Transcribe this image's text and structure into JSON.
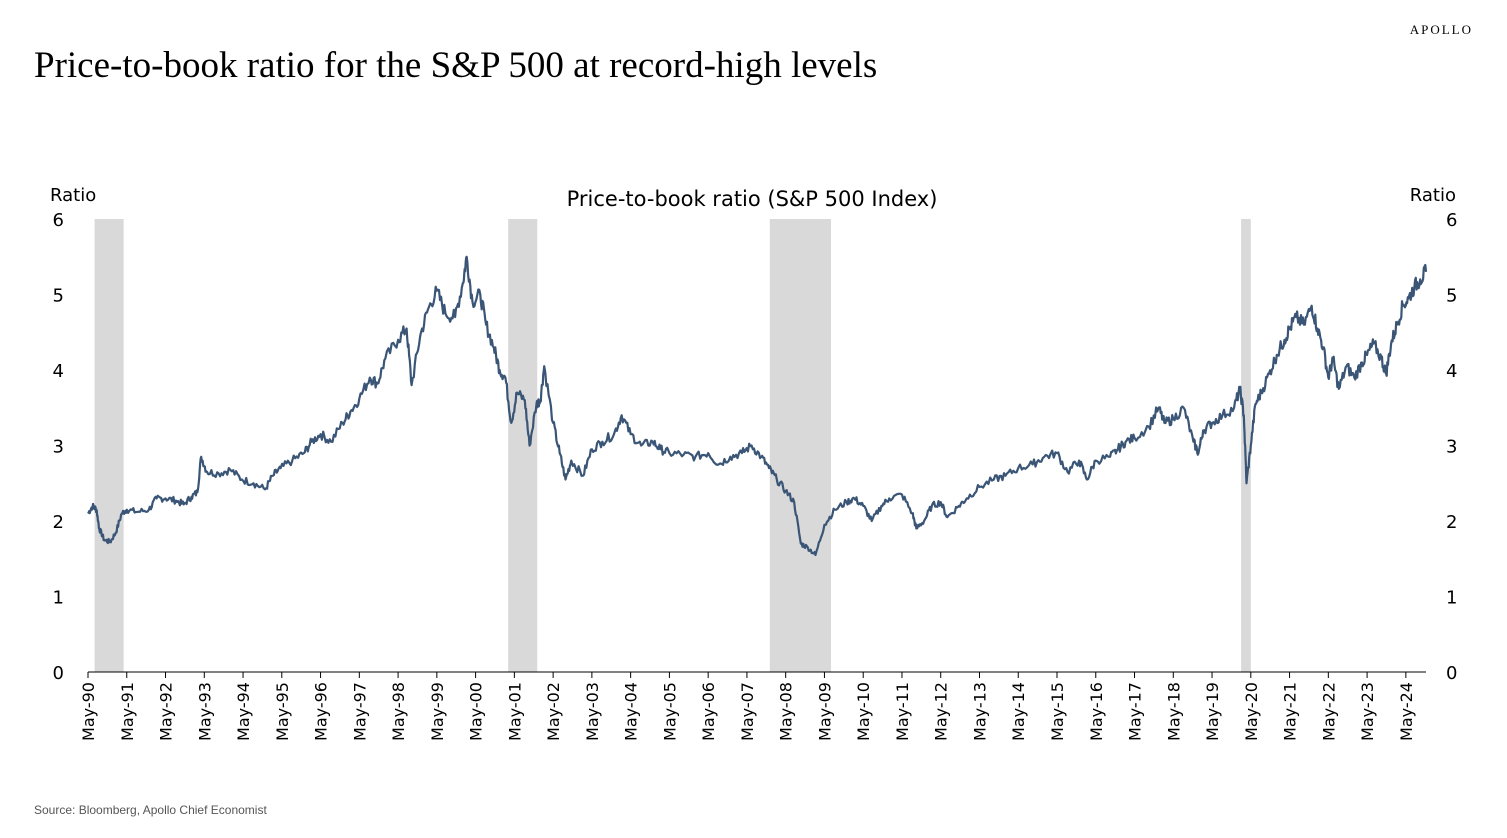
{
  "brand": "APOLLO",
  "headline": "Price-to-book ratio for the S&P 500 at record-high levels",
  "source": "Source: Bloomberg, Apollo Chief Economist",
  "colors": {
    "line": "#3a5576",
    "recession": "#d9d9d9",
    "axis": "#000000"
  },
  "chart_data": {
    "type": "line",
    "title": "Price-to-book ratio (S&P 500 Index)",
    "ylabel_left": "Ratio",
    "ylabel_right": "Ratio",
    "ylim": [
      0,
      6
    ],
    "yticks": [
      0,
      1,
      2,
      3,
      4,
      5,
      6
    ],
    "xlim": [
      1990.33,
      2024.85
    ],
    "xticks": [
      {
        "label": "May-90",
        "x": 1990.33
      },
      {
        "label": "May-91",
        "x": 1991.33
      },
      {
        "label": "May-92",
        "x": 1992.33
      },
      {
        "label": "May-93",
        "x": 1993.33
      },
      {
        "label": "May-94",
        "x": 1994.33
      },
      {
        "label": "May-95",
        "x": 1995.33
      },
      {
        "label": "May-96",
        "x": 1996.33
      },
      {
        "label": "May-97",
        "x": 1997.33
      },
      {
        "label": "May-98",
        "x": 1998.33
      },
      {
        "label": "May-99",
        "x": 1999.33
      },
      {
        "label": "May-00",
        "x": 2000.33
      },
      {
        "label": "May-01",
        "x": 2001.33
      },
      {
        "label": "May-02",
        "x": 2002.33
      },
      {
        "label": "May-03",
        "x": 2003.33
      },
      {
        "label": "May-04",
        "x": 2004.33
      },
      {
        "label": "May-05",
        "x": 2005.33
      },
      {
        "label": "May-06",
        "x": 2006.33
      },
      {
        "label": "May-07",
        "x": 2007.33
      },
      {
        "label": "May-08",
        "x": 2008.33
      },
      {
        "label": "May-09",
        "x": 2009.33
      },
      {
        "label": "May-10",
        "x": 2010.33
      },
      {
        "label": "May-11",
        "x": 2011.33
      },
      {
        "label": "May-12",
        "x": 2012.33
      },
      {
        "label": "May-13",
        "x": 2013.33
      },
      {
        "label": "May-14",
        "x": 2014.33
      },
      {
        "label": "May-15",
        "x": 2015.33
      },
      {
        "label": "May-16",
        "x": 2016.33
      },
      {
        "label": "May-17",
        "x": 2017.33
      },
      {
        "label": "May-18",
        "x": 2018.33
      },
      {
        "label": "May-19",
        "x": 2019.33
      },
      {
        "label": "May-20",
        "x": 2020.33
      },
      {
        "label": "May-21",
        "x": 2021.33
      },
      {
        "label": "May-22",
        "x": 2022.33
      },
      {
        "label": "May-23",
        "x": 2023.33
      },
      {
        "label": "May-24",
        "x": 2024.33
      }
    ],
    "recessions": [
      {
        "start": 1990.5,
        "end": 1991.25
      },
      {
        "start": 2001.17,
        "end": 2001.92
      },
      {
        "start": 2007.92,
        "end": 2009.5
      },
      {
        "start": 2020.08,
        "end": 2020.33
      }
    ],
    "grid": false,
    "series": [
      {
        "values": [
          [
            1990.33,
            2.1
          ],
          [
            1990.45,
            2.2
          ],
          [
            1990.55,
            2.15
          ],
          [
            1990.62,
            1.9
          ],
          [
            1990.75,
            1.75
          ],
          [
            1990.9,
            1.72
          ],
          [
            1991.05,
            1.85
          ],
          [
            1991.2,
            2.1
          ],
          [
            1991.33,
            2.15
          ],
          [
            1991.6,
            2.12
          ],
          [
            1991.9,
            2.15
          ],
          [
            1992.1,
            2.3
          ],
          [
            1992.33,
            2.3
          ],
          [
            1992.6,
            2.27
          ],
          [
            1992.8,
            2.22
          ],
          [
            1993.0,
            2.32
          ],
          [
            1993.15,
            2.38
          ],
          [
            1993.25,
            2.85
          ],
          [
            1993.4,
            2.65
          ],
          [
            1993.7,
            2.63
          ],
          [
            1994.0,
            2.68
          ],
          [
            1994.3,
            2.55
          ],
          [
            1994.6,
            2.5
          ],
          [
            1994.9,
            2.42
          ],
          [
            1995.1,
            2.6
          ],
          [
            1995.3,
            2.7
          ],
          [
            1995.6,
            2.8
          ],
          [
            1995.9,
            2.9
          ],
          [
            1996.1,
            3.05
          ],
          [
            1996.33,
            3.15
          ],
          [
            1996.6,
            3.05
          ],
          [
            1996.9,
            3.3
          ],
          [
            1997.1,
            3.45
          ],
          [
            1997.33,
            3.62
          ],
          [
            1997.6,
            3.9
          ],
          [
            1997.8,
            3.82
          ],
          [
            1998.0,
            4.15
          ],
          [
            1998.33,
            4.4
          ],
          [
            1998.55,
            4.55
          ],
          [
            1998.68,
            3.8
          ],
          [
            1998.9,
            4.45
          ],
          [
            1999.1,
            4.8
          ],
          [
            1999.33,
            5.05
          ],
          [
            1999.55,
            4.75
          ],
          [
            1999.8,
            4.7
          ],
          [
            2000.0,
            5.15
          ],
          [
            2000.1,
            5.5
          ],
          [
            2000.25,
            4.9
          ],
          [
            2000.45,
            5.0
          ],
          [
            2000.6,
            4.6
          ],
          [
            2000.8,
            4.3
          ],
          [
            2000.95,
            4.0
          ],
          [
            2001.1,
            3.9
          ],
          [
            2001.25,
            3.3
          ],
          [
            2001.4,
            3.7
          ],
          [
            2001.6,
            3.6
          ],
          [
            2001.72,
            3.0
          ],
          [
            2001.9,
            3.55
          ],
          [
            2002.0,
            3.6
          ],
          [
            2002.1,
            4.05
          ],
          [
            2002.33,
            3.3
          ],
          [
            2002.5,
            2.9
          ],
          [
            2002.65,
            2.55
          ],
          [
            2002.8,
            2.8
          ],
          [
            2003.1,
            2.6
          ],
          [
            2003.33,
            2.95
          ],
          [
            2003.6,
            3.05
          ],
          [
            2003.9,
            3.15
          ],
          [
            2004.1,
            3.4
          ],
          [
            2004.33,
            3.15
          ],
          [
            2004.6,
            3.0
          ],
          [
            2004.9,
            3.05
          ],
          [
            2005.1,
            2.95
          ],
          [
            2005.33,
            2.9
          ],
          [
            2005.7,
            2.88
          ],
          [
            2006.0,
            2.85
          ],
          [
            2006.33,
            2.9
          ],
          [
            2006.6,
            2.75
          ],
          [
            2006.9,
            2.85
          ],
          [
            2007.2,
            2.9
          ],
          [
            2007.45,
            3.0
          ],
          [
            2007.7,
            2.85
          ],
          [
            2007.9,
            2.7
          ],
          [
            2008.1,
            2.55
          ],
          [
            2008.33,
            2.4
          ],
          [
            2008.55,
            2.25
          ],
          [
            2008.72,
            1.7
          ],
          [
            2008.9,
            1.65
          ],
          [
            2009.1,
            1.55
          ],
          [
            2009.33,
            1.95
          ],
          [
            2009.6,
            2.15
          ],
          [
            2009.9,
            2.25
          ],
          [
            2010.1,
            2.3
          ],
          [
            2010.33,
            2.2
          ],
          [
            2010.55,
            2.0
          ],
          [
            2010.8,
            2.2
          ],
          [
            2011.0,
            2.3
          ],
          [
            2011.33,
            2.35
          ],
          [
            2011.6,
            2.1
          ],
          [
            2011.7,
            1.9
          ],
          [
            2011.9,
            2.0
          ],
          [
            2012.1,
            2.2
          ],
          [
            2012.33,
            2.25
          ],
          [
            2012.5,
            2.05
          ],
          [
            2012.8,
            2.2
          ],
          [
            2013.0,
            2.3
          ],
          [
            2013.33,
            2.45
          ],
          [
            2013.7,
            2.55
          ],
          [
            2014.0,
            2.6
          ],
          [
            2014.33,
            2.7
          ],
          [
            2014.7,
            2.75
          ],
          [
            2015.0,
            2.85
          ],
          [
            2015.33,
            2.9
          ],
          [
            2015.6,
            2.65
          ],
          [
            2015.9,
            2.8
          ],
          [
            2016.1,
            2.55
          ],
          [
            2016.33,
            2.8
          ],
          [
            2016.7,
            2.85
          ],
          [
            2016.9,
            2.95
          ],
          [
            2017.1,
            3.05
          ],
          [
            2017.33,
            3.1
          ],
          [
            2017.7,
            3.25
          ],
          [
            2017.95,
            3.5
          ],
          [
            2018.1,
            3.3
          ],
          [
            2018.33,
            3.35
          ],
          [
            2018.6,
            3.5
          ],
          [
            2018.85,
            3.05
          ],
          [
            2018.98,
            2.9
          ],
          [
            2019.1,
            3.2
          ],
          [
            2019.33,
            3.3
          ],
          [
            2019.6,
            3.4
          ],
          [
            2019.9,
            3.5
          ],
          [
            2020.05,
            3.75
          ],
          [
            2020.15,
            3.4
          ],
          [
            2020.22,
            2.5
          ],
          [
            2020.33,
            3.0
          ],
          [
            2020.45,
            3.55
          ],
          [
            2020.6,
            3.7
          ],
          [
            2020.8,
            3.95
          ],
          [
            2021.0,
            4.2
          ],
          [
            2021.2,
            4.4
          ],
          [
            2021.33,
            4.55
          ],
          [
            2021.5,
            4.7
          ],
          [
            2021.7,
            4.6
          ],
          [
            2021.9,
            4.85
          ],
          [
            2022.05,
            4.55
          ],
          [
            2022.2,
            4.3
          ],
          [
            2022.33,
            3.9
          ],
          [
            2022.45,
            4.15
          ],
          [
            2022.6,
            3.75
          ],
          [
            2022.8,
            4.05
          ],
          [
            2023.0,
            3.9
          ],
          [
            2023.2,
            4.1
          ],
          [
            2023.33,
            4.2
          ],
          [
            2023.5,
            4.35
          ],
          [
            2023.7,
            4.15
          ],
          [
            2023.82,
            3.95
          ],
          [
            2023.95,
            4.35
          ],
          [
            2024.1,
            4.6
          ],
          [
            2024.25,
            4.85
          ],
          [
            2024.4,
            4.95
          ],
          [
            2024.55,
            5.1
          ],
          [
            2024.7,
            5.2
          ],
          [
            2024.85,
            5.3
          ]
        ]
      }
    ]
  }
}
